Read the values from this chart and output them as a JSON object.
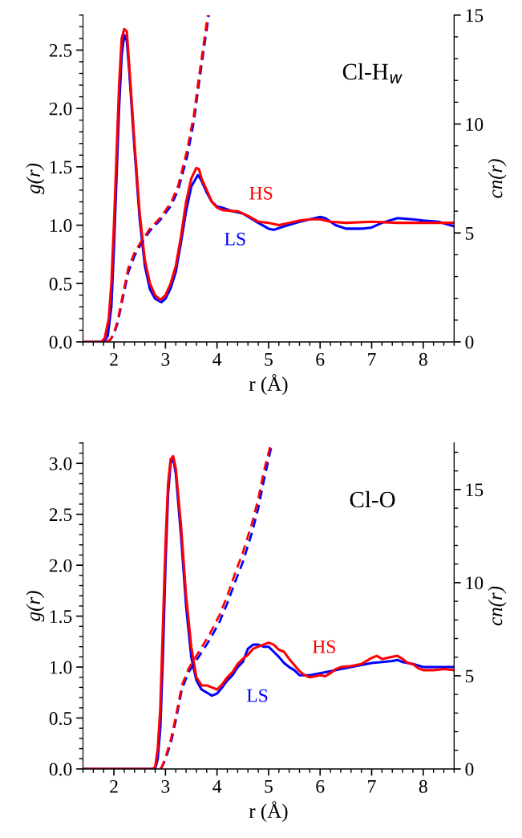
{
  "chart_data": [
    {
      "type": "line",
      "title": "Cl-H$_{w}$",
      "xlabel": "r (Å)",
      "ylabel": "g(r)",
      "y2label": "cn(r)",
      "xlim": [
        1.4,
        8.6
      ],
      "xticks": [
        2,
        3,
        4,
        5,
        6,
        7,
        8
      ],
      "ylim": [
        0,
        2.8
      ],
      "yticks": [
        {
          "value": 0,
          "label": "0.0"
        },
        0.5,
        {
          "value": 1,
          "label": "1.0"
        },
        1.5,
        {
          "value": 2,
          "label": "2.0"
        },
        2.5
      ],
      "y2lim": [
        0,
        15
      ],
      "y2ticks": [
        0,
        5,
        10,
        15
      ],
      "grid": false,
      "legend": false,
      "series": [
        {
          "color": "#0000ff",
          "line_style": "solid",
          "x": [
            1.4,
            1.8,
            1.88,
            1.95,
            2.0,
            2.05,
            2.1,
            2.15,
            2.2,
            2.25,
            2.3,
            2.4,
            2.5,
            2.6,
            2.7,
            2.8,
            2.92,
            3.0,
            3.1,
            3.2,
            3.3,
            3.4,
            3.5,
            3.63,
            3.7,
            3.8,
            3.9,
            4.0,
            4.1,
            4.3,
            4.5,
            4.8,
            5.0,
            5.1,
            5.3,
            5.6,
            5.9,
            6.0,
            6.1,
            6.3,
            6.5,
            6.8,
            7.0,
            7.2,
            7.5,
            7.8,
            8.0,
            8.3,
            8.6
          ],
          "values": [
            0,
            0,
            0.05,
            0.3,
            0.8,
            1.4,
            2.0,
            2.45,
            2.63,
            2.58,
            2.3,
            1.65,
            1.05,
            0.65,
            0.45,
            0.37,
            0.34,
            0.37,
            0.46,
            0.6,
            0.85,
            1.12,
            1.33,
            1.43,
            1.38,
            1.28,
            1.2,
            1.16,
            1.15,
            1.12,
            1.1,
            1.02,
            0.97,
            0.96,
            0.99,
            1.03,
            1.06,
            1.07,
            1.06,
            1.0,
            0.97,
            0.97,
            0.98,
            1.02,
            1.06,
            1.05,
            1.04,
            1.03,
            0.99
          ]
        },
        {
          "color": "#ff0000",
          "line_style": "solid",
          "x": [
            1.4,
            1.75,
            1.82,
            1.9,
            1.95,
            2.0,
            2.05,
            2.1,
            2.15,
            2.2,
            2.25,
            2.3,
            2.4,
            2.5,
            2.6,
            2.7,
            2.8,
            2.9,
            3.0,
            3.1,
            3.2,
            3.3,
            3.4,
            3.5,
            3.6,
            3.65,
            3.7,
            3.8,
            3.9,
            4.0,
            4.1,
            4.3,
            4.4,
            4.6,
            4.8,
            5.0,
            5.2,
            5.4,
            5.6,
            5.8,
            6.0,
            6.2,
            6.5,
            7.0,
            7.5,
            8.0,
            8.6
          ],
          "values": [
            0,
            0,
            0.03,
            0.2,
            0.5,
            1.0,
            1.6,
            2.2,
            2.6,
            2.68,
            2.66,
            2.35,
            1.7,
            1.1,
            0.7,
            0.5,
            0.4,
            0.36,
            0.4,
            0.5,
            0.65,
            0.9,
            1.2,
            1.4,
            1.49,
            1.48,
            1.4,
            1.3,
            1.2,
            1.15,
            1.13,
            1.12,
            1.12,
            1.08,
            1.03,
            1.02,
            1.0,
            1.02,
            1.04,
            1.05,
            1.05,
            1.03,
            1.02,
            1.03,
            1.02,
            1.02,
            1.02
          ]
        },
        {
          "color": "#0000ff",
          "line_style": "dashed",
          "axis": "y2",
          "x": [
            1.85,
            1.93,
            2.0,
            2.07,
            2.15,
            2.28,
            2.4,
            2.54,
            2.7,
            2.9,
            3.11,
            3.25,
            3.42,
            3.55,
            3.64,
            3.73,
            3.84
          ],
          "values": [
            0,
            0.1,
            0.35,
            0.85,
            1.75,
            3.2,
            3.95,
            4.55,
            5.1,
            5.6,
            6.25,
            7.0,
            8.5,
            10.1,
            11.7,
            13.2,
            15.0
          ]
        },
        {
          "color": "#ff0000",
          "line_style": "dashed",
          "axis": "y2",
          "x": [
            1.85,
            1.93,
            2.0,
            2.07,
            2.15,
            2.28,
            2.4,
            2.54,
            2.7,
            2.9,
            3.11,
            3.25,
            3.42,
            3.55,
            3.64,
            3.73,
            3.82
          ],
          "values": [
            0,
            0.1,
            0.4,
            0.96,
            1.9,
            3.4,
            4.1,
            4.65,
            5.2,
            5.7,
            6.4,
            7.2,
            8.8,
            10.4,
            12.0,
            13.5,
            15.0
          ]
        }
      ],
      "annotations": [
        "LS",
        "HS"
      ]
    },
    {
      "type": "line",
      "title": "Cl-O",
      "xlabel": "r (Å)",
      "ylabel": "g(r)",
      "y2label": "cn(r)",
      "xlim": [
        1.4,
        8.6
      ],
      "xticks": [
        2,
        3,
        4,
        5,
        6,
        7,
        8
      ],
      "ylim": [
        0,
        3.2
      ],
      "yticks": [
        {
          "value": 0,
          "label": "0.0"
        },
        0.5,
        {
          "value": 1,
          "label": "1.0"
        },
        1.5,
        {
          "value": 2,
          "label": "2.0"
        },
        2.5,
        {
          "value": 3,
          "label": "3.0"
        }
      ],
      "y2lim": [
        0,
        17.5
      ],
      "y2ticks": [
        0,
        5,
        10,
        15
      ],
      "grid": false,
      "legend": false,
      "series": [
        {
          "color": "#0000ff",
          "line_style": "solid",
          "x": [
            1.4,
            2.8,
            2.85,
            2.9,
            2.95,
            3.0,
            3.05,
            3.1,
            3.15,
            3.2,
            3.3,
            3.4,
            3.5,
            3.6,
            3.7,
            3.8,
            3.9,
            4.0,
            4.1,
            4.2,
            4.3,
            4.4,
            4.5,
            4.6,
            4.7,
            4.8,
            4.9,
            5.0,
            5.1,
            5.2,
            5.3,
            5.4,
            5.5,
            5.6,
            5.7,
            5.8,
            5.9,
            6.0,
            6.2,
            6.4,
            6.6,
            6.8,
            7.0,
            7.2,
            7.4,
            7.5,
            7.6,
            7.8,
            8.0,
            8.2,
            8.4,
            8.6
          ],
          "values": [
            0,
            0,
            0.1,
            0.4,
            1.1,
            2.0,
            2.7,
            3.0,
            3.05,
            2.9,
            2.3,
            1.6,
            1.1,
            0.87,
            0.78,
            0.75,
            0.72,
            0.74,
            0.8,
            0.87,
            0.92,
            1.0,
            1.05,
            1.18,
            1.22,
            1.22,
            1.2,
            1.2,
            1.15,
            1.1,
            1.04,
            1.0,
            0.97,
            0.92,
            0.92,
            0.92,
            0.93,
            0.94,
            0.96,
            0.98,
            1.0,
            1.02,
            1.04,
            1.05,
            1.06,
            1.07,
            1.05,
            1.03,
            1.0,
            1.0,
            1.0,
            1.0
          ]
        },
        {
          "color": "#ff0000",
          "line_style": "solid",
          "x": [
            1.4,
            2.75,
            2.8,
            2.85,
            2.9,
            2.95,
            3.0,
            3.05,
            3.1,
            3.15,
            3.2,
            3.3,
            3.4,
            3.5,
            3.6,
            3.7,
            3.8,
            3.9,
            4.0,
            4.1,
            4.2,
            4.3,
            4.4,
            4.5,
            4.6,
            4.7,
            4.8,
            4.9,
            5.0,
            5.1,
            5.2,
            5.3,
            5.4,
            5.5,
            5.6,
            5.7,
            5.8,
            5.9,
            6.0,
            6.1,
            6.2,
            6.3,
            6.4,
            6.6,
            6.8,
            7.0,
            7.1,
            7.2,
            7.4,
            7.5,
            7.6,
            7.7,
            7.8,
            7.9,
            8.0,
            8.2,
            8.4,
            8.6
          ],
          "values": [
            0,
            0,
            0.02,
            0.2,
            0.6,
            1.4,
            2.2,
            2.8,
            3.04,
            3.07,
            2.95,
            2.4,
            1.7,
            1.2,
            0.9,
            0.82,
            0.82,
            0.8,
            0.78,
            0.83,
            0.9,
            0.95,
            1.03,
            1.08,
            1.12,
            1.18,
            1.2,
            1.22,
            1.24,
            1.22,
            1.17,
            1.15,
            1.08,
            1.02,
            0.96,
            0.92,
            0.9,
            0.91,
            0.92,
            0.91,
            0.94,
            0.98,
            1.0,
            1.01,
            1.03,
            1.09,
            1.11,
            1.08,
            1.1,
            1.11,
            1.08,
            1.04,
            1.03,
            0.99,
            0.97,
            0.97,
            0.98,
            0.97
          ]
        },
        {
          "color": "#0000ff",
          "line_style": "dashed",
          "axis": "y2",
          "x": [
            2.9,
            2.93,
            3.0,
            3.11,
            3.2,
            3.32,
            3.45,
            3.64,
            3.85,
            4.05,
            4.2,
            4.36,
            4.5,
            4.68,
            4.8,
            4.91,
            5.07
          ],
          "values": [
            0,
            0.1,
            0.5,
            1.45,
            2.6,
            4.3,
            5.2,
            6.0,
            6.9,
            7.9,
            8.9,
            10.1,
            11.1,
            12.7,
            14.0,
            15.5,
            17.5
          ]
        },
        {
          "color": "#ff0000",
          "line_style": "dashed",
          "axis": "y2",
          "x": [
            2.9,
            2.93,
            3.0,
            3.11,
            3.2,
            3.32,
            3.45,
            3.64,
            3.85,
            4.05,
            4.2,
            4.36,
            4.5,
            4.68,
            4.8,
            4.91,
            5.05
          ],
          "values": [
            0,
            0.13,
            0.6,
            1.64,
            2.8,
            4.5,
            5.4,
            6.25,
            7.2,
            8.26,
            9.3,
            10.57,
            11.6,
            13.2,
            14.5,
            16.0,
            17.5
          ]
        }
      ],
      "annotations": [
        "LS",
        "HS"
      ]
    }
  ]
}
